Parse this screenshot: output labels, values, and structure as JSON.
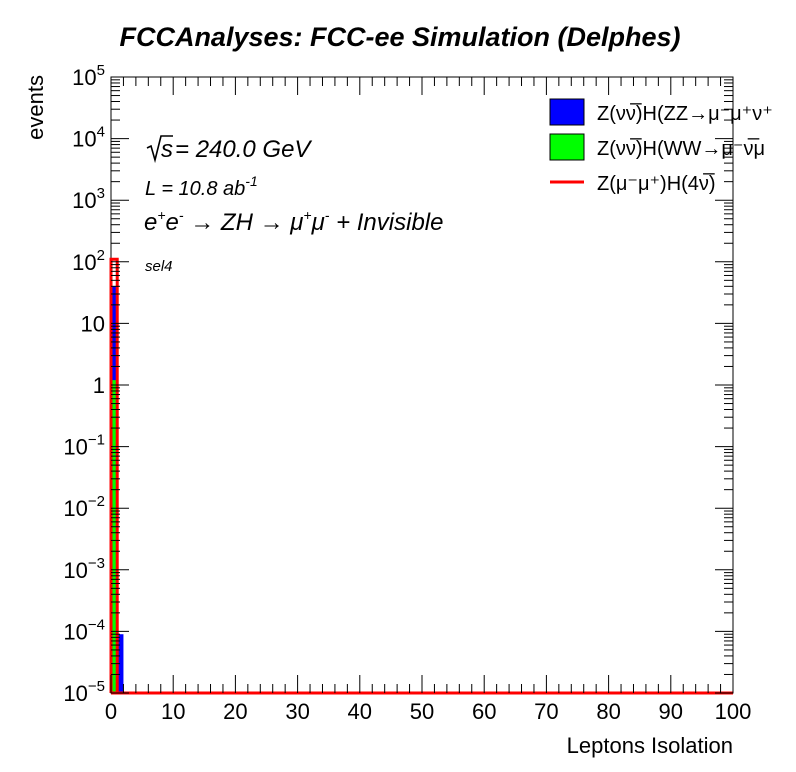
{
  "title": "FCCAnalyses: FCC-ee Simulation (Delphes)",
  "chart_data": {
    "type": "bar",
    "xlabel": "Leptons Isolation",
    "ylabel": "events",
    "xlim": [
      0,
      100
    ],
    "ylim": [
      1e-05,
      100000
    ],
    "yscale": "log",
    "xticks": [
      "0",
      "10",
      "20",
      "30",
      "40",
      "50",
      "60",
      "70",
      "80",
      "90",
      "100"
    ],
    "series": [
      {
        "name": "Z(νν̅)H(ZZ→μ⁻μ⁺ν⁺",
        "color": "#0000ff",
        "style": "stacked-fill",
        "bins": [
          {
            "x0": 0,
            "x1": 1,
            "y": 40
          },
          {
            "x0": 1,
            "x1": 2,
            "y": 9e-05
          }
        ]
      },
      {
        "name": "Z(νν̅)H(WW→μ⁻ν̅μ",
        "color": "#00ff00",
        "style": "stacked-fill",
        "bins": [
          {
            "x0": 0,
            "x1": 1,
            "y": 1.2
          }
        ]
      },
      {
        "name": "Z(μ⁻μ⁺)H(4ν̅)",
        "color": "#ff0000",
        "style": "line",
        "bins": [
          {
            "x0": 0,
            "x1": 1,
            "y": 110
          }
        ]
      }
    ]
  },
  "annotations": {
    "sqrt_s": "240.0 GeV",
    "lumi_prefix": "L = 10.8 ab",
    "lumi_exp": "-1",
    "process_parts": [
      "e",
      "+",
      "e",
      "-",
      " → ZH → μ",
      "+",
      "μ",
      "-",
      " + Invisible"
    ],
    "selection": "sel4"
  },
  "colors": {
    "frame": "#000000",
    "background": "#ffffff"
  }
}
